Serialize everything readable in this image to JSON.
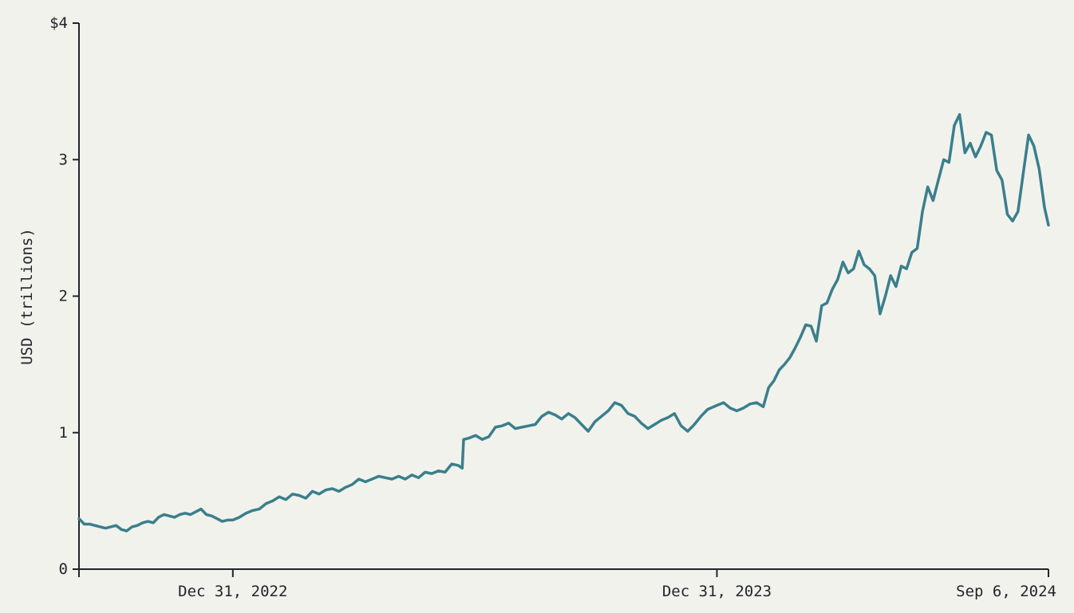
{
  "chart_data": {
    "type": "line",
    "title": "",
    "xlabel": "",
    "ylabel": "USD (trillions)",
    "ylim": [
      0,
      4
    ],
    "xlim": [
      "2022-09-06",
      "2024-09-06"
    ],
    "y_ticks": [
      {
        "value": 0,
        "label": "0"
      },
      {
        "value": 1,
        "label": "1"
      },
      {
        "value": 2,
        "label": "2"
      },
      {
        "value": 3,
        "label": "3"
      },
      {
        "value": 4,
        "label": "$4"
      }
    ],
    "x_ticks": [
      {
        "value": "2022-09-06",
        "label": ""
      },
      {
        "value": "2022-12-31",
        "label": "Dec 31, 2022"
      },
      {
        "value": "2023-12-31",
        "label": "Dec 31, 2023"
      },
      {
        "value": "2024-09-06",
        "label": "Sep 6, 2024"
      }
    ],
    "grid": false,
    "line_color": "#3a7f8c",
    "axis_color": "#22262a",
    "series": [
      {
        "points": [
          [
            "2022-09-06",
            0.37
          ],
          [
            "2022-09-10",
            0.33
          ],
          [
            "2022-09-14",
            0.33
          ],
          [
            "2022-09-18",
            0.32
          ],
          [
            "2022-09-22",
            0.31
          ],
          [
            "2022-09-26",
            0.3
          ],
          [
            "2022-09-30",
            0.31
          ],
          [
            "2022-10-04",
            0.32
          ],
          [
            "2022-10-08",
            0.29
          ],
          [
            "2022-10-12",
            0.28
          ],
          [
            "2022-10-16",
            0.31
          ],
          [
            "2022-10-20",
            0.32
          ],
          [
            "2022-10-24",
            0.34
          ],
          [
            "2022-10-28",
            0.35
          ],
          [
            "2022-11-01",
            0.34
          ],
          [
            "2022-11-05",
            0.38
          ],
          [
            "2022-11-09",
            0.4
          ],
          [
            "2022-11-13",
            0.39
          ],
          [
            "2022-11-17",
            0.38
          ],
          [
            "2022-11-21",
            0.4
          ],
          [
            "2022-11-25",
            0.41
          ],
          [
            "2022-11-29",
            0.4
          ],
          [
            "2022-12-03",
            0.42
          ],
          [
            "2022-12-07",
            0.44
          ],
          [
            "2022-12-11",
            0.4
          ],
          [
            "2022-12-15",
            0.39
          ],
          [
            "2022-12-19",
            0.37
          ],
          [
            "2022-12-23",
            0.35
          ],
          [
            "2022-12-27",
            0.36
          ],
          [
            "2022-12-31",
            0.36
          ],
          [
            "2023-01-05",
            0.38
          ],
          [
            "2023-01-10",
            0.41
          ],
          [
            "2023-01-15",
            0.43
          ],
          [
            "2023-01-20",
            0.44
          ],
          [
            "2023-01-25",
            0.48
          ],
          [
            "2023-01-30",
            0.5
          ],
          [
            "2023-02-04",
            0.53
          ],
          [
            "2023-02-09",
            0.51
          ],
          [
            "2023-02-14",
            0.55
          ],
          [
            "2023-02-19",
            0.54
          ],
          [
            "2023-02-24",
            0.52
          ],
          [
            "2023-03-01",
            0.57
          ],
          [
            "2023-03-06",
            0.55
          ],
          [
            "2023-03-11",
            0.58
          ],
          [
            "2023-03-16",
            0.59
          ],
          [
            "2023-03-21",
            0.57
          ],
          [
            "2023-03-26",
            0.6
          ],
          [
            "2023-03-31",
            0.62
          ],
          [
            "2023-04-05",
            0.66
          ],
          [
            "2023-04-10",
            0.64
          ],
          [
            "2023-04-15",
            0.66
          ],
          [
            "2023-04-20",
            0.68
          ],
          [
            "2023-04-25",
            0.67
          ],
          [
            "2023-04-30",
            0.66
          ],
          [
            "2023-05-05",
            0.68
          ],
          [
            "2023-05-10",
            0.66
          ],
          [
            "2023-05-15",
            0.69
          ],
          [
            "2023-05-20",
            0.67
          ],
          [
            "2023-05-25",
            0.71
          ],
          [
            "2023-05-30",
            0.7
          ],
          [
            "2023-06-04",
            0.72
          ],
          [
            "2023-06-09",
            0.71
          ],
          [
            "2023-06-14",
            0.77
          ],
          [
            "2023-06-19",
            0.76
          ],
          [
            "2023-06-22",
            0.74
          ],
          [
            "2023-06-23",
            0.95
          ],
          [
            "2023-06-27",
            0.96
          ],
          [
            "2023-07-02",
            0.98
          ],
          [
            "2023-07-07",
            0.95
          ],
          [
            "2023-07-12",
            0.97
          ],
          [
            "2023-07-17",
            1.04
          ],
          [
            "2023-07-22",
            1.05
          ],
          [
            "2023-07-27",
            1.07
          ],
          [
            "2023-08-01",
            1.03
          ],
          [
            "2023-08-06",
            1.04
          ],
          [
            "2023-08-11",
            1.05
          ],
          [
            "2023-08-16",
            1.06
          ],
          [
            "2023-08-21",
            1.12
          ],
          [
            "2023-08-26",
            1.15
          ],
          [
            "2023-08-31",
            1.13
          ],
          [
            "2023-09-05",
            1.1
          ],
          [
            "2023-09-10",
            1.14
          ],
          [
            "2023-09-15",
            1.11
          ],
          [
            "2023-09-20",
            1.06
          ],
          [
            "2023-09-25",
            1.01
          ],
          [
            "2023-09-30",
            1.08
          ],
          [
            "2023-10-05",
            1.12
          ],
          [
            "2023-10-10",
            1.16
          ],
          [
            "2023-10-15",
            1.22
          ],
          [
            "2023-10-20",
            1.2
          ],
          [
            "2023-10-25",
            1.14
          ],
          [
            "2023-10-30",
            1.12
          ],
          [
            "2023-11-04",
            1.07
          ],
          [
            "2023-11-09",
            1.03
          ],
          [
            "2023-11-14",
            1.06
          ],
          [
            "2023-11-19",
            1.09
          ],
          [
            "2023-11-24",
            1.11
          ],
          [
            "2023-11-29",
            1.14
          ],
          [
            "2023-12-04",
            1.05
          ],
          [
            "2023-12-09",
            1.01
          ],
          [
            "2023-12-14",
            1.06
          ],
          [
            "2023-12-19",
            1.12
          ],
          [
            "2023-12-24",
            1.17
          ],
          [
            "2023-12-31",
            1.2
          ],
          [
            "2024-01-05",
            1.22
          ],
          [
            "2024-01-10",
            1.18
          ],
          [
            "2024-01-15",
            1.16
          ],
          [
            "2024-01-20",
            1.18
          ],
          [
            "2024-01-25",
            1.21
          ],
          [
            "2024-01-30",
            1.22
          ],
          [
            "2024-02-04",
            1.19
          ],
          [
            "2024-02-08",
            1.33
          ],
          [
            "2024-02-12",
            1.38
          ],
          [
            "2024-02-16",
            1.46
          ],
          [
            "2024-02-20",
            1.5
          ],
          [
            "2024-02-24",
            1.55
          ],
          [
            "2024-02-28",
            1.62
          ],
          [
            "2024-03-03",
            1.7
          ],
          [
            "2024-03-07",
            1.79
          ],
          [
            "2024-03-11",
            1.78
          ],
          [
            "2024-03-15",
            1.67
          ],
          [
            "2024-03-19",
            1.93
          ],
          [
            "2024-03-23",
            1.95
          ],
          [
            "2024-03-27",
            2.05
          ],
          [
            "2024-03-31",
            2.12
          ],
          [
            "2024-04-04",
            2.25
          ],
          [
            "2024-04-08",
            2.17
          ],
          [
            "2024-04-12",
            2.2
          ],
          [
            "2024-04-16",
            2.33
          ],
          [
            "2024-04-20",
            2.23
          ],
          [
            "2024-04-24",
            2.2
          ],
          [
            "2024-04-28",
            2.15
          ],
          [
            "2024-05-02",
            1.87
          ],
          [
            "2024-05-06",
            2.0
          ],
          [
            "2024-05-10",
            2.15
          ],
          [
            "2024-05-14",
            2.07
          ],
          [
            "2024-05-18",
            2.22
          ],
          [
            "2024-05-22",
            2.2
          ],
          [
            "2024-05-26",
            2.32
          ],
          [
            "2024-05-30",
            2.35
          ],
          [
            "2024-06-03",
            2.62
          ],
          [
            "2024-06-07",
            2.8
          ],
          [
            "2024-06-11",
            2.7
          ],
          [
            "2024-06-15",
            2.85
          ],
          [
            "2024-06-19",
            3.0
          ],
          [
            "2024-06-23",
            2.98
          ],
          [
            "2024-06-27",
            3.25
          ],
          [
            "2024-07-01",
            3.33
          ],
          [
            "2024-07-05",
            3.05
          ],
          [
            "2024-07-09",
            3.12
          ],
          [
            "2024-07-13",
            3.02
          ],
          [
            "2024-07-17",
            3.1
          ],
          [
            "2024-07-21",
            3.2
          ],
          [
            "2024-07-25",
            3.18
          ],
          [
            "2024-07-29",
            2.92
          ],
          [
            "2024-08-02",
            2.85
          ],
          [
            "2024-08-06",
            2.6
          ],
          [
            "2024-08-10",
            2.55
          ],
          [
            "2024-08-14",
            2.62
          ],
          [
            "2024-08-18",
            2.9
          ],
          [
            "2024-08-22",
            3.18
          ],
          [
            "2024-08-26",
            3.1
          ],
          [
            "2024-08-30",
            2.93
          ],
          [
            "2024-09-03",
            2.65
          ],
          [
            "2024-09-06",
            2.52
          ]
        ]
      }
    ]
  }
}
